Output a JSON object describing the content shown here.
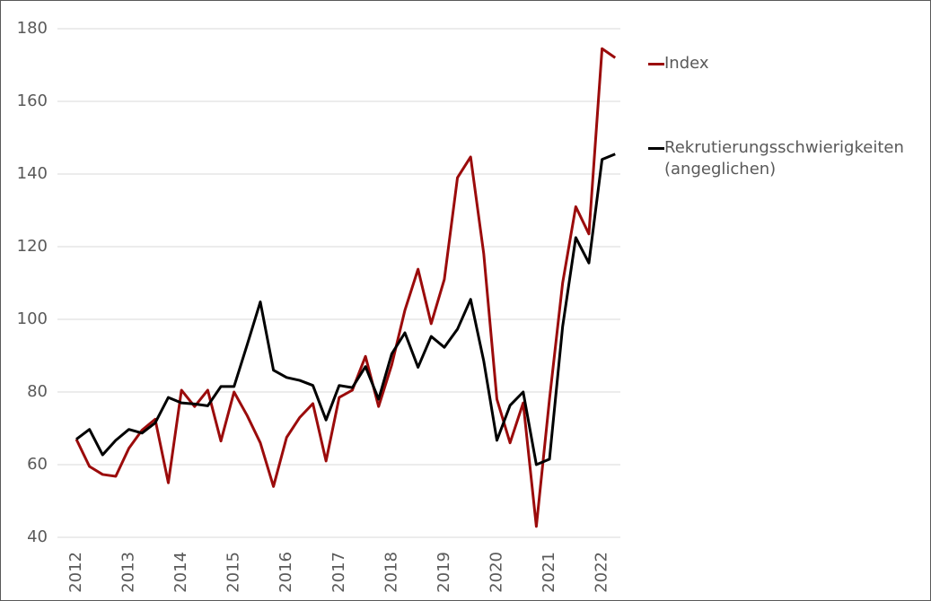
{
  "chart_data": {
    "type": "line",
    "categories": [
      "2012",
      null,
      null,
      null,
      "2013",
      null,
      null,
      null,
      "2014",
      null,
      null,
      null,
      "2015",
      null,
      null,
      null,
      "2016",
      null,
      null,
      null,
      "2017",
      null,
      null,
      null,
      "2018",
      null,
      null,
      null,
      "2019",
      null,
      null,
      null,
      "2020",
      null,
      null,
      null,
      "2021",
      null,
      null,
      null,
      "2022",
      null
    ],
    "series": [
      {
        "name": "Index",
        "color": "#9b0b0b",
        "values": [
          67,
          59.5,
          57.3,
          56.8,
          64.5,
          69.5,
          72.5,
          55,
          80.5,
          76,
          80.5,
          66.5,
          80,
          73.5,
          66,
          54,
          67.5,
          73,
          76.8,
          61,
          78.5,
          80.5,
          89.8,
          76,
          87.5,
          102.5,
          113.8,
          98.8,
          111,
          139,
          144.7,
          118,
          78,
          66,
          77,
          43,
          78,
          110,
          131,
          123.5,
          174.5,
          172
        ]
      },
      {
        "name": "Rekrutierungsschwierigkeiten (angeglichen)",
        "color": "#000000",
        "values": [
          67,
          69.7,
          62.7,
          66.7,
          69.7,
          68.7,
          71.5,
          78.5,
          77,
          76.7,
          76.2,
          81.5,
          81.5,
          93,
          104.8,
          86,
          84,
          83.2,
          81.8,
          72.3,
          81.8,
          81.2,
          87,
          78,
          90.5,
          96.3,
          86.8,
          95.3,
          92.3,
          97.3,
          105.5,
          88.5,
          66.7,
          76.3,
          80,
          60,
          61.5,
          98,
          122.5,
          115.5,
          144,
          145.5
        ]
      }
    ],
    "ylim": [
      40,
      180
    ],
    "yticks": [
      40,
      60,
      80,
      100,
      120,
      140,
      160,
      180
    ],
    "grid": true
  }
}
